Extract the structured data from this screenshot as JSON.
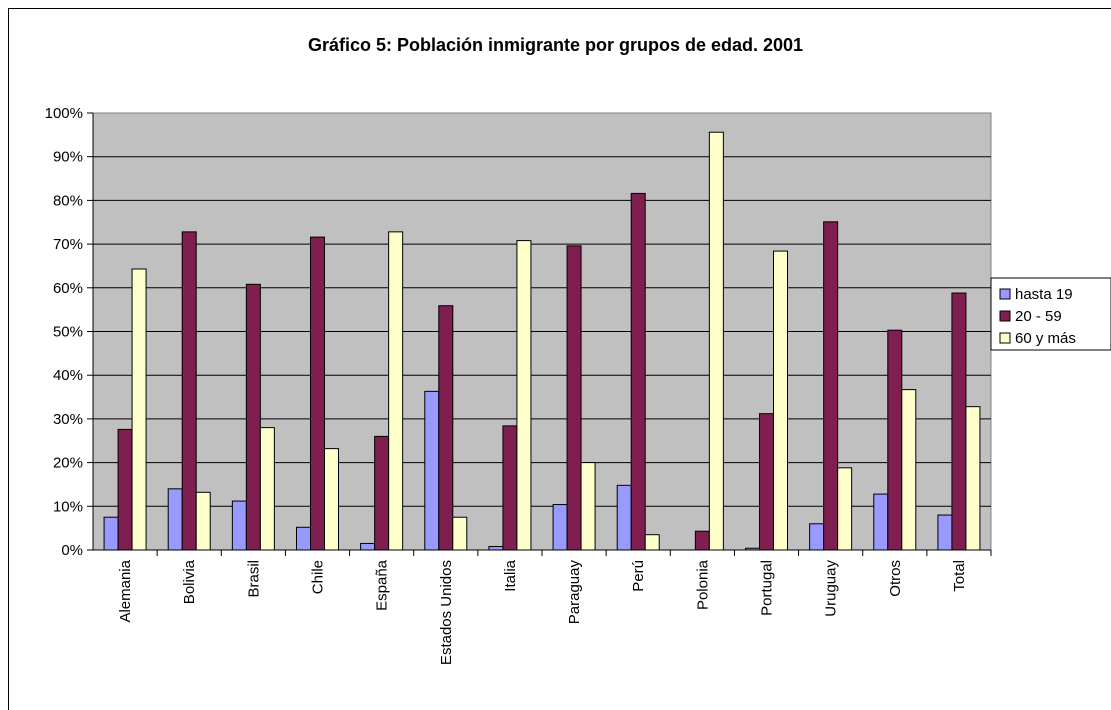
{
  "chart_data": {
    "type": "bar",
    "title": "Gráfico 5: Población inmigrante por grupos de edad. 2001",
    "xlabel": "",
    "ylabel": "",
    "ylim": [
      0,
      100
    ],
    "y_ticks": [
      "0%",
      "10%",
      "20%",
      "30%",
      "40%",
      "50%",
      "60%",
      "70%",
      "80%",
      "90%",
      "100%"
    ],
    "grid": true,
    "legend_position": "right",
    "categories": [
      "Alemania",
      "Bolivia",
      "Brasil",
      "Chile",
      "España",
      "Estados Unidos",
      "Italia",
      "Paraguay",
      "Perú",
      "Polonia",
      "Portugal",
      "Uruguay",
      "Otros",
      "Total"
    ],
    "series": [
      {
        "name": "hasta 19",
        "color": "#9999ff",
        "values": [
          7.5,
          14,
          11.2,
          5.2,
          1.5,
          36.3,
          0.8,
          10.4,
          14.8,
          0,
          0.4,
          6,
          12.8,
          8
        ]
      },
      {
        "name": "20 - 59",
        "color": "#7f1f4f",
        "values": [
          27.6,
          72.8,
          60.8,
          71.6,
          26,
          55.9,
          28.4,
          69.6,
          81.6,
          4.3,
          31.2,
          75.1,
          50.3,
          58.8
        ]
      },
      {
        "name": "60 y más",
        "color": "#ffffcc",
        "values": [
          64.3,
          13.2,
          28,
          23.2,
          72.8,
          7.5,
          70.8,
          20,
          3.5,
          95.6,
          68.4,
          18.8,
          36.7,
          32.8
        ]
      }
    ]
  }
}
